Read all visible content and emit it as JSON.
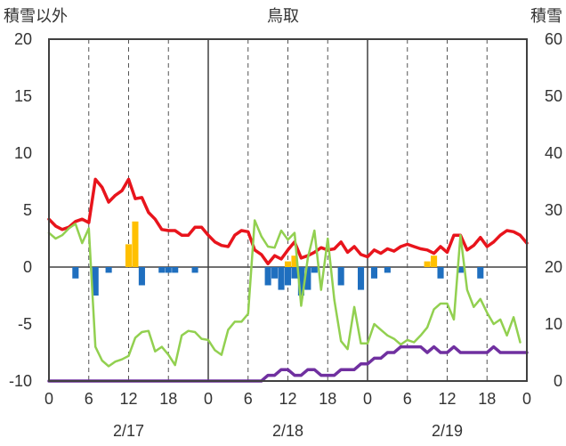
{
  "chart_data": {
    "type": "bar+line",
    "title": "鳥取",
    "left_axis_label": "積雪以外",
    "right_axis_label": "積雪",
    "left_ylim": [
      -10,
      20
    ],
    "right_ylim": [
      0,
      60
    ],
    "left_ticks": [
      "20",
      "15",
      "10",
      "5",
      "0",
      "-5",
      "-10"
    ],
    "right_ticks": [
      "60",
      "50",
      "40",
      "30",
      "20",
      "10",
      "0"
    ],
    "x_ticks": [
      "0",
      "6",
      "12",
      "18",
      "0",
      "6",
      "12",
      "18",
      "0",
      "6",
      "12",
      "18",
      "0"
    ],
    "date_labels": [
      "2/17",
      "2/18",
      "2/19"
    ],
    "x_range_hours": [
      0,
      72
    ],
    "grid": true,
    "colors": {
      "temperature": "#e8141c",
      "snow_depth": "#7030a0",
      "humidity_line": "#92d050",
      "precip_bar": "#ffc000",
      "negative_bar": "#1f6fbf",
      "frame": "#404040"
    },
    "series": [
      {
        "kind": "line",
        "axis": "left",
        "color": "#e8141c",
        "points": [
          [
            0,
            4.2
          ],
          [
            1,
            3.6
          ],
          [
            2,
            3.3
          ],
          [
            3,
            3.5
          ],
          [
            4,
            4.0
          ],
          [
            5,
            4.2
          ],
          [
            6,
            3.9
          ],
          [
            7,
            7.7
          ],
          [
            8,
            7.0
          ],
          [
            9,
            5.7
          ],
          [
            10,
            6.3
          ],
          [
            11,
            6.7
          ],
          [
            12,
            7.7
          ],
          [
            13,
            6.0
          ],
          [
            14,
            6.1
          ],
          [
            15,
            4.8
          ],
          [
            16,
            4.2
          ],
          [
            17,
            3.3
          ],
          [
            18,
            3.2
          ],
          [
            19,
            3.2
          ],
          [
            20,
            2.8
          ],
          [
            21,
            2.8
          ],
          [
            22,
            3.5
          ],
          [
            23,
            3.5
          ],
          [
            24,
            2.8
          ],
          [
            25,
            2.2
          ],
          [
            26,
            1.9
          ],
          [
            27,
            1.8
          ],
          [
            28,
            2.8
          ],
          [
            29,
            3.2
          ],
          [
            30,
            3.1
          ],
          [
            31,
            1.5
          ],
          [
            32,
            1.1
          ],
          [
            33,
            0.3
          ],
          [
            34,
            1.0
          ],
          [
            35,
            0.7
          ],
          [
            36,
            1.5
          ],
          [
            37,
            2.2
          ],
          [
            38,
            0.8
          ],
          [
            39,
            1.0
          ],
          [
            40,
            1.3
          ],
          [
            41,
            1.7
          ],
          [
            42,
            1.5
          ],
          [
            43,
            1.6
          ],
          [
            44,
            2.2
          ],
          [
            45,
            1.3
          ],
          [
            46,
            1.8
          ],
          [
            47,
            1.1
          ],
          [
            48,
            0.9
          ],
          [
            49,
            1.5
          ],
          [
            50,
            1.2
          ],
          [
            51,
            1.6
          ],
          [
            52,
            1.4
          ],
          [
            53,
            1.8
          ],
          [
            54,
            2.0
          ],
          [
            55,
            1.8
          ],
          [
            56,
            1.6
          ],
          [
            57,
            1.5
          ],
          [
            58,
            1.2
          ],
          [
            59,
            1.8
          ],
          [
            60,
            1.3
          ],
          [
            61,
            2.8
          ],
          [
            62,
            2.8
          ],
          [
            63,
            1.5
          ],
          [
            64,
            1.9
          ],
          [
            65,
            2.6
          ],
          [
            66,
            1.8
          ],
          [
            67,
            2.2
          ],
          [
            68,
            2.8
          ],
          [
            69,
            3.2
          ],
          [
            70,
            3.1
          ],
          [
            71,
            2.8
          ],
          [
            72,
            2.1
          ]
        ]
      },
      {
        "kind": "line",
        "axis": "left",
        "color": "#92d050",
        "points": [
          [
            0,
            3.0
          ],
          [
            1,
            2.5
          ],
          [
            2,
            2.8
          ],
          [
            3,
            3.4
          ],
          [
            4,
            3.8
          ],
          [
            5,
            2.1
          ],
          [
            6,
            3.4
          ],
          [
            7,
            -7.0
          ],
          [
            8,
            -8.2
          ],
          [
            9,
            -8.7
          ],
          [
            10,
            -8.3
          ],
          [
            11,
            -8.1
          ],
          [
            12,
            -7.8
          ],
          [
            13,
            -6.2
          ],
          [
            14,
            -5.7
          ],
          [
            15,
            -5.6
          ],
          [
            16,
            -7.4
          ],
          [
            17,
            -7.0
          ],
          [
            18,
            -7.7
          ],
          [
            19,
            -8.6
          ],
          [
            20,
            -6.0
          ],
          [
            21,
            -5.6
          ],
          [
            22,
            -5.7
          ],
          [
            23,
            -6.3
          ],
          [
            24,
            -6.4
          ],
          [
            25,
            -7.3
          ],
          [
            26,
            -7.7
          ],
          [
            27,
            -5.5
          ],
          [
            28,
            -4.8
          ],
          [
            29,
            -4.8
          ],
          [
            30,
            -4.1
          ],
          [
            31,
            4.1
          ],
          [
            32,
            2.7
          ],
          [
            33,
            1.8
          ],
          [
            34,
            1.7
          ],
          [
            35,
            3.2
          ],
          [
            36,
            2.4
          ],
          [
            37,
            3.0
          ],
          [
            38,
            -3.4
          ],
          [
            39,
            0.8
          ],
          [
            40,
            3.2
          ],
          [
            41,
            -2.0
          ],
          [
            42,
            2.5
          ],
          [
            43,
            -2.9
          ],
          [
            44,
            -6.5
          ],
          [
            45,
            -7.2
          ],
          [
            46,
            -3.5
          ],
          [
            47,
            -6.7
          ],
          [
            48,
            -6.7
          ],
          [
            49,
            -5.0
          ],
          [
            50,
            -5.5
          ],
          [
            51,
            -6.0
          ],
          [
            52,
            -6.3
          ],
          [
            53,
            -6.8
          ],
          [
            54,
            -6.4
          ],
          [
            55,
            -6.6
          ],
          [
            56,
            -6.0
          ],
          [
            57,
            -5.3
          ],
          [
            58,
            -3.7
          ],
          [
            59,
            -3.2
          ],
          [
            60,
            -3.2
          ],
          [
            61,
            -4.6
          ],
          [
            62,
            2.8
          ],
          [
            63,
            -2.0
          ],
          [
            64,
            -3.5
          ],
          [
            65,
            -2.8
          ],
          [
            66,
            -4.0
          ],
          [
            67,
            -5.0
          ],
          [
            68,
            -4.6
          ],
          [
            69,
            -6.0
          ],
          [
            70,
            -4.4
          ],
          [
            71,
            -6.6
          ]
        ]
      },
      {
        "kind": "line",
        "axis": "right",
        "color": "#7030a0",
        "points": [
          [
            0,
            0
          ],
          [
            32,
            0
          ],
          [
            33,
            1
          ],
          [
            34,
            1
          ],
          [
            35,
            2
          ],
          [
            36,
            2
          ],
          [
            37,
            1
          ],
          [
            38,
            1
          ],
          [
            39,
            2
          ],
          [
            40,
            2
          ],
          [
            41,
            1
          ],
          [
            42,
            1
          ],
          [
            43,
            1
          ],
          [
            44,
            2
          ],
          [
            45,
            2
          ],
          [
            46,
            2
          ],
          [
            47,
            3
          ],
          [
            48,
            3
          ],
          [
            49,
            4
          ],
          [
            50,
            4
          ],
          [
            51,
            5
          ],
          [
            52,
            5
          ],
          [
            53,
            6
          ],
          [
            54,
            6
          ],
          [
            55,
            6
          ],
          [
            56,
            6
          ],
          [
            57,
            5
          ],
          [
            58,
            6
          ],
          [
            59,
            5
          ],
          [
            60,
            5
          ],
          [
            61,
            6
          ],
          [
            62,
            5
          ],
          [
            63,
            5
          ],
          [
            64,
            5
          ],
          [
            65,
            5
          ],
          [
            66,
            5
          ],
          [
            67,
            6
          ],
          [
            68,
            5
          ],
          [
            69,
            5
          ],
          [
            70,
            5
          ],
          [
            71,
            5
          ],
          [
            72,
            5
          ]
        ]
      },
      {
        "kind": "bar",
        "axis": "left",
        "color": "#ffc000",
        "points": [
          [
            12,
            2.0
          ],
          [
            13,
            4.0
          ],
          [
            36,
            0.5
          ],
          [
            37,
            1.0
          ],
          [
            57,
            0.5
          ],
          [
            58,
            1.0
          ]
        ]
      },
      {
        "kind": "bar",
        "axis": "left",
        "color": "#1f6fbf",
        "points": [
          [
            4,
            -1.0
          ],
          [
            7,
            -2.5
          ],
          [
            9,
            -0.5
          ],
          [
            14,
            -1.6
          ],
          [
            17,
            -0.5
          ],
          [
            18,
            -0.5
          ],
          [
            19,
            -0.5
          ],
          [
            22,
            -0.5
          ],
          [
            33,
            -1.6
          ],
          [
            34,
            -1.0
          ],
          [
            35,
            -2.0
          ],
          [
            36,
            -1.6
          ],
          [
            37,
            -1.0
          ],
          [
            38,
            -2.5
          ],
          [
            39,
            -2.0
          ],
          [
            40,
            -0.5
          ],
          [
            44,
            -1.6
          ],
          [
            47,
            -2.0
          ],
          [
            49,
            -1.0
          ],
          [
            51,
            -0.5
          ],
          [
            59,
            -1.0
          ],
          [
            62,
            -0.5
          ],
          [
            65,
            -1.0
          ]
        ]
      }
    ]
  }
}
